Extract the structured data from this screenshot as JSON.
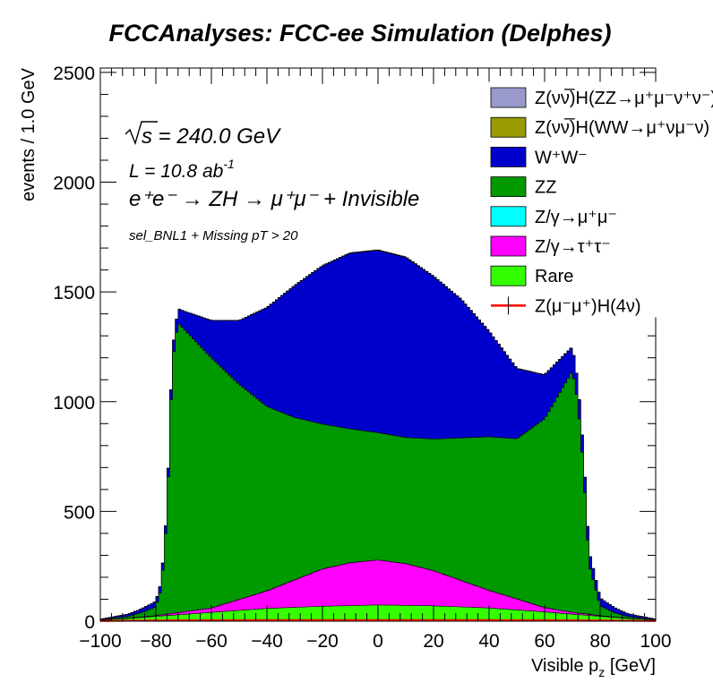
{
  "chart_data": {
    "type": "area",
    "title": "FCCAnalyses: FCC-ee Simulation (Delphes)",
    "xlabel": "Visible p_z [GeV]",
    "ylabel": "events / 1.0 GeV",
    "xlim": [
      -100,
      100
    ],
    "ylim": [
      0,
      2520
    ],
    "x_ticks": [
      -100,
      -80,
      -60,
      -40,
      -20,
      0,
      20,
      40,
      60,
      80,
      100
    ],
    "y_ticks": [
      0,
      500,
      1000,
      1500,
      2000,
      2500
    ],
    "x_tick_labels": [
      "−100",
      "−80",
      "−60",
      "−40",
      "−20",
      "0",
      "20",
      "40",
      "60",
      "80",
      "100"
    ],
    "y_tick_labels": [
      "0",
      "500",
      "1000",
      "1500",
      "2000",
      "2500"
    ],
    "bin_width": 1.0,
    "annotations": {
      "sqrt_s": "s = 240.0 GeV",
      "lumi": "L = 10.8 ab",
      "lumi_exp": "-1",
      "process": "e⁺e⁻ → ZH → μ⁺μ⁻ + Invisible",
      "selection": "sel_BNL1 + Missing pT > 20"
    },
    "legend_position": "top-right",
    "series": [
      {
        "name": "Z(νν̅)H(ZZ→μ⁺μ⁻ν⁺ν⁻)",
        "color": "#9999cc",
        "style": "fill",
        "x": [
          -80,
          -40,
          0,
          40,
          80
        ],
        "values": [
          0.3,
          0.6,
          1,
          0.6,
          0.3
        ]
      },
      {
        "name": "Z(νν̅)H(WW→μ⁺νμ⁻ν)",
        "color": "#999900",
        "style": "fill",
        "x": [
          -80,
          -40,
          0,
          40,
          80
        ],
        "values": [
          0.5,
          1,
          2,
          1,
          0.5
        ]
      },
      {
        "name": "W⁺W⁻",
        "color": "#0000cc",
        "style": "fill",
        "x": [
          -100,
          -90,
          -80,
          -75,
          -70,
          -60,
          -50,
          -40,
          -30,
          -20,
          -10,
          0,
          10,
          20,
          30,
          40,
          50,
          60,
          70,
          75,
          80,
          90,
          100
        ],
        "values": [
          2,
          10,
          25,
          40,
          80,
          170,
          290,
          450,
          600,
          720,
          800,
          830,
          820,
          740,
          630,
          480,
          320,
          200,
          110,
          65,
          35,
          12,
          2
        ]
      },
      {
        "name": "ZZ",
        "color": "#009900",
        "style": "fill",
        "x": [
          -100,
          -90,
          -85,
          -80,
          -78,
          -76,
          -74,
          -72,
          -70,
          -60,
          -50,
          -40,
          -30,
          -20,
          -10,
          0,
          10,
          20,
          30,
          40,
          50,
          60,
          70,
          72,
          74,
          76,
          80,
          85,
          90,
          100
        ],
        "values": [
          2,
          8,
          20,
          40,
          120,
          450,
          1150,
          1320,
          1290,
          1140,
          980,
          840,
          740,
          660,
          610,
          580,
          575,
          600,
          650,
          700,
          730,
          860,
          1100,
          960,
          660,
          230,
          45,
          20,
          8,
          2
        ]
      },
      {
        "name": "Z/γ→μ⁺μ⁻",
        "color": "#00ffff",
        "style": "fill",
        "x": [
          -100,
          0,
          100
        ],
        "values": [
          0,
          0,
          0
        ]
      },
      {
        "name": "Z/γ→τ⁺τ⁻",
        "color": "#ff00ff",
        "style": "fill",
        "x": [
          -100,
          -80,
          -60,
          -40,
          -30,
          -20,
          -10,
          0,
          10,
          20,
          30,
          40,
          50,
          60,
          70,
          80,
          90,
          100
        ],
        "values": [
          0,
          3,
          20,
          80,
          125,
          170,
          195,
          205,
          190,
          160,
          120,
          80,
          50,
          20,
          8,
          3,
          1,
          0
        ]
      },
      {
        "name": "Rare",
        "color": "#33ff00",
        "style": "fill",
        "x": [
          -100,
          -90,
          -80,
          -60,
          -40,
          -20,
          0,
          20,
          40,
          60,
          80,
          90,
          100
        ],
        "values": [
          5,
          12,
          22,
          40,
          58,
          68,
          74,
          70,
          60,
          42,
          22,
          12,
          5
        ]
      },
      {
        "name": "Z(μ⁻μ⁺)H(4ν)",
        "color": "#ff0000",
        "style": "line",
        "x": [
          -100,
          -90,
          -80,
          -60,
          -40,
          -20,
          0,
          20,
          40,
          60,
          80,
          90,
          100
        ],
        "values": [
          1,
          2,
          3,
          4,
          5,
          5,
          5,
          5,
          5,
          4,
          3,
          2,
          1
        ]
      }
    ]
  }
}
